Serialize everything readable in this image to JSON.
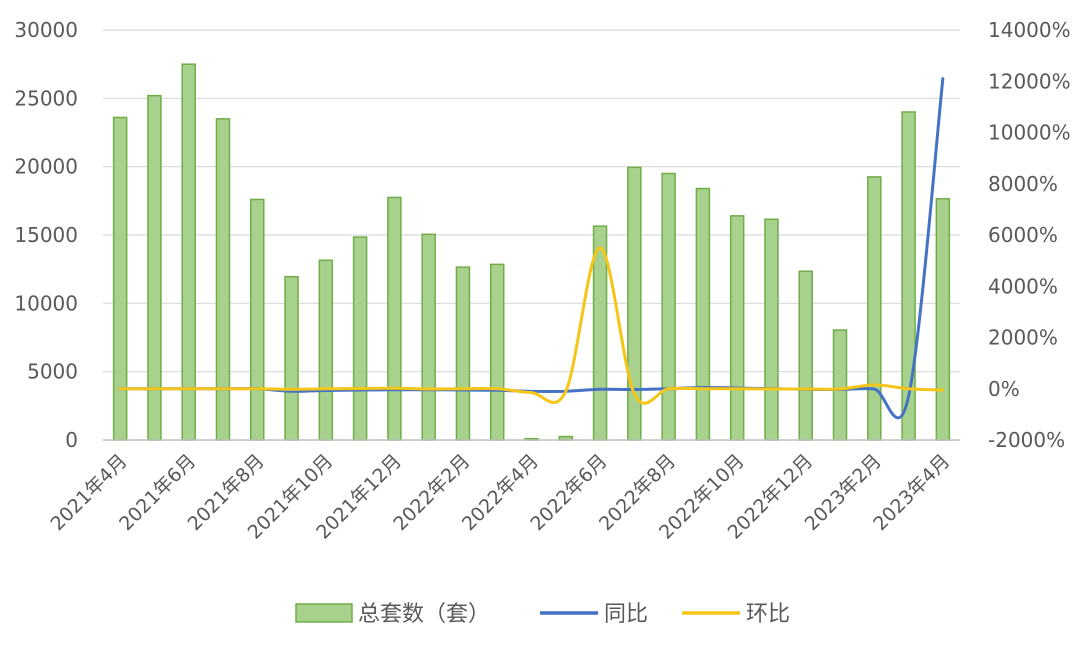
{
  "chart_data": {
    "type": "bar",
    "categories": [
      "2021年4月",
      "2021年5月",
      "2021年6月",
      "2021年7月",
      "2021年8月",
      "2021年9月",
      "2021年10月",
      "2021年11月",
      "2021年12月",
      "2022年1月",
      "2022年2月",
      "2022年3月",
      "2022年4月",
      "2022年5月",
      "2022年6月",
      "2022年7月",
      "2022年8月",
      "2022年9月",
      "2022年10月",
      "2022年11月",
      "2022年12月",
      "2023年1月",
      "2023年2月",
      "2023年3月",
      "2023年4月"
    ],
    "x_tick_labels": [
      "2021年4月",
      "2021年6月",
      "2021年8月",
      "2021年10月",
      "2021年12月",
      "2022年2月",
      "2022年4月",
      "2022年6月",
      "2022年8月",
      "2022年10月",
      "2022年12月",
      "2023年2月",
      "2023年4月"
    ],
    "series": [
      {
        "name": "总套数（套）",
        "type": "bar",
        "axis": "left",
        "color": "#a9d18e",
        "edge_color": "#70ad47",
        "values": [
          23600,
          25200,
          27500,
          23500,
          17600,
          11950,
          13150,
          14850,
          17750,
          15050,
          12650,
          12850,
          100,
          250,
          15650,
          19950,
          19500,
          18400,
          16400,
          16150,
          12350,
          8050,
          19250,
          24000,
          17650
        ]
      },
      {
        "name": "同比",
        "type": "line",
        "axis": "right",
        "color": "#4472c4",
        "values": [
          0,
          0,
          0,
          0,
          0,
          -100,
          -70,
          -50,
          -40,
          -40,
          -50,
          -60,
          -100,
          -100,
          -20,
          -30,
          0,
          50,
          30,
          0,
          -20,
          -30,
          -10,
          -300,
          12100
        ]
      },
      {
        "name": "环比",
        "type": "line",
        "axis": "right",
        "color": "#f5c518",
        "values": [
          0,
          0,
          0,
          0,
          0,
          -20,
          0,
          10,
          20,
          -10,
          0,
          0,
          -150,
          -100,
          5500,
          -200,
          0,
          0,
          0,
          -10,
          -10,
          -10,
          150,
          0,
          -50
        ]
      }
    ],
    "y_left": {
      "min": 0,
      "max": 30000,
      "ticks": [
        "0",
        "5000",
        "10000",
        "15000",
        "20000",
        "25000",
        "30000"
      ]
    },
    "y_right": {
      "min": -2000,
      "max": 14000,
      "ticks": [
        "-2000%",
        "0%",
        "2000%",
        "4000%",
        "6000%",
        "8000%",
        "10000%",
        "12000%",
        "14000%"
      ]
    },
    "grid": true,
    "legend_position": "bottom"
  }
}
